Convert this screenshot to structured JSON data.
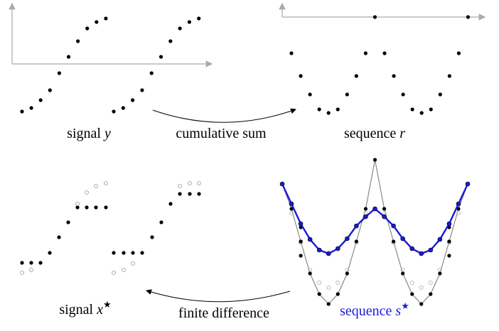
{
  "labels": {
    "signal_y": {
      "word": "signal",
      "var": "y"
    },
    "cumulative_sum": "cumulative sum",
    "sequence_r": {
      "word": "sequence",
      "var": "r"
    },
    "signal_x": {
      "word": "signal",
      "var": "x",
      "mark": "★"
    },
    "finite_difference": "finite difference",
    "sequence_s": {
      "word": "sequence",
      "var": "s",
      "mark": "★"
    }
  }
}
